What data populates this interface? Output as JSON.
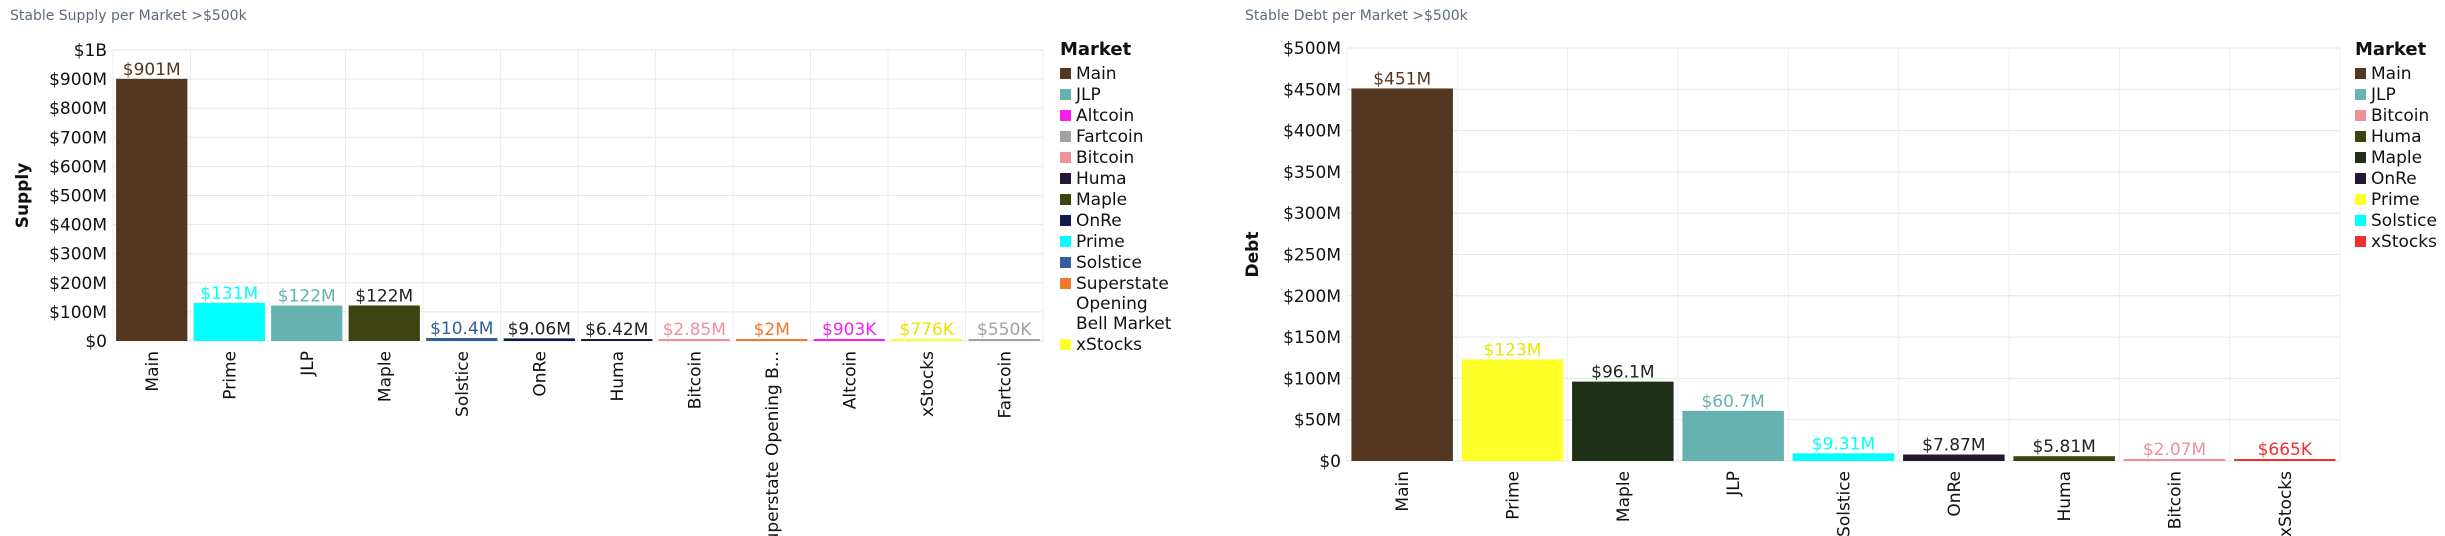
{
  "chart_data": [
    {
      "type": "bar",
      "title": "Stable Supply per Market >$500k",
      "xlabel": "",
      "ylabel": "Supply",
      "ylim": [
        0,
        1000000000
      ],
      "yticks": [
        "$0",
        "$100M",
        "$200M",
        "$300M",
        "$400M",
        "$500M",
        "$600M",
        "$700M",
        "$800M",
        "$900M",
        "$1B"
      ],
      "grid": true,
      "legend_title": "Market",
      "legend_position": "right",
      "categories": [
        "Main",
        "Prime",
        "JLP",
        "Maple",
        "Solstice",
        "OnRe",
        "Huma",
        "Bitcoin",
        "Superstate Opening B...",
        "Altcoin",
        "xStocks",
        "Fartcoin"
      ],
      "values": [
        901000000,
        131000000,
        122000000,
        122000000,
        10400000,
        9060000,
        6420000,
        2850000,
        2000000,
        903000,
        776000,
        550000
      ],
      "labels": [
        "$901M",
        "$131M",
        "$122M",
        "$122M",
        "$10.4M",
        "$9.06M",
        "$6.42M",
        "$2.85M",
        "$2M",
        "$903K",
        "$776K",
        "$550K"
      ],
      "colors": [
        "#533720",
        "#00ffff",
        "#66b2b0",
        "#3d4411",
        "#34609a",
        "#0f1a4a",
        "#261733",
        "#f0909a",
        "#f07a28",
        "#f520f0",
        "#ffff2a",
        "#a2a2a2"
      ],
      "legend": [
        {
          "name": "Main",
          "color": "#533720"
        },
        {
          "name": "JLP",
          "color": "#66b2b0"
        },
        {
          "name": "Altcoin",
          "color": "#f520f0"
        },
        {
          "name": "Fartcoin",
          "color": "#a2a2a2"
        },
        {
          "name": "Bitcoin",
          "color": "#f0909a"
        },
        {
          "name": "Huma",
          "color": "#261733"
        },
        {
          "name": "Maple",
          "color": "#3d4411"
        },
        {
          "name": "OnRe",
          "color": "#0f1a4a"
        },
        {
          "name": "Prime",
          "color": "#00ffff"
        },
        {
          "name": "Solstice",
          "color": "#34609a"
        },
        {
          "name": "Superstate Opening Bell Market",
          "color": "#f07a28"
        },
        {
          "name": "xStocks",
          "color": "#ffff2a"
        }
      ]
    },
    {
      "type": "bar",
      "title": "Stable Debt per Market >$500k",
      "xlabel": "",
      "ylabel": "Debt",
      "ylim": [
        0,
        500000000
      ],
      "yticks": [
        "$0",
        "$50M",
        "$100M",
        "$150M",
        "$200M",
        "$250M",
        "$300M",
        "$350M",
        "$400M",
        "$450M",
        "$500M"
      ],
      "grid": true,
      "legend_title": "Market",
      "legend_position": "right",
      "categories": [
        "Main",
        "Prime",
        "Maple",
        "JLP",
        "Solstice",
        "OnRe",
        "Huma",
        "Bitcoin",
        "xStocks"
      ],
      "values": [
        451000000,
        123000000,
        96100000,
        60700000,
        9310000,
        7870000,
        5810000,
        2070000,
        665000
      ],
      "labels": [
        "$451M",
        "$123M",
        "$96.1M",
        "$60.7M",
        "$9.31M",
        "$7.87M",
        "$5.81M",
        "$2.07M",
        "$665K"
      ],
      "colors": [
        "#533720",
        "#ffff2a",
        "#1e3016",
        "#66b2b0",
        "#00ffff",
        "#261733",
        "#3d4411",
        "#f0909a",
        "#f03030"
      ],
      "legend": [
        {
          "name": "Main",
          "color": "#533720"
        },
        {
          "name": "JLP",
          "color": "#66b2b0"
        },
        {
          "name": "Bitcoin",
          "color": "#f0909a"
        },
        {
          "name": "Huma",
          "color": "#3d4411"
        },
        {
          "name": "Maple",
          "color": "#1e3016"
        },
        {
          "name": "OnRe",
          "color": "#261733"
        },
        {
          "name": "Prime",
          "color": "#ffff2a"
        },
        {
          "name": "Solstice",
          "color": "#00ffff"
        },
        {
          "name": "xStocks",
          "color": "#f03030"
        }
      ]
    }
  ]
}
